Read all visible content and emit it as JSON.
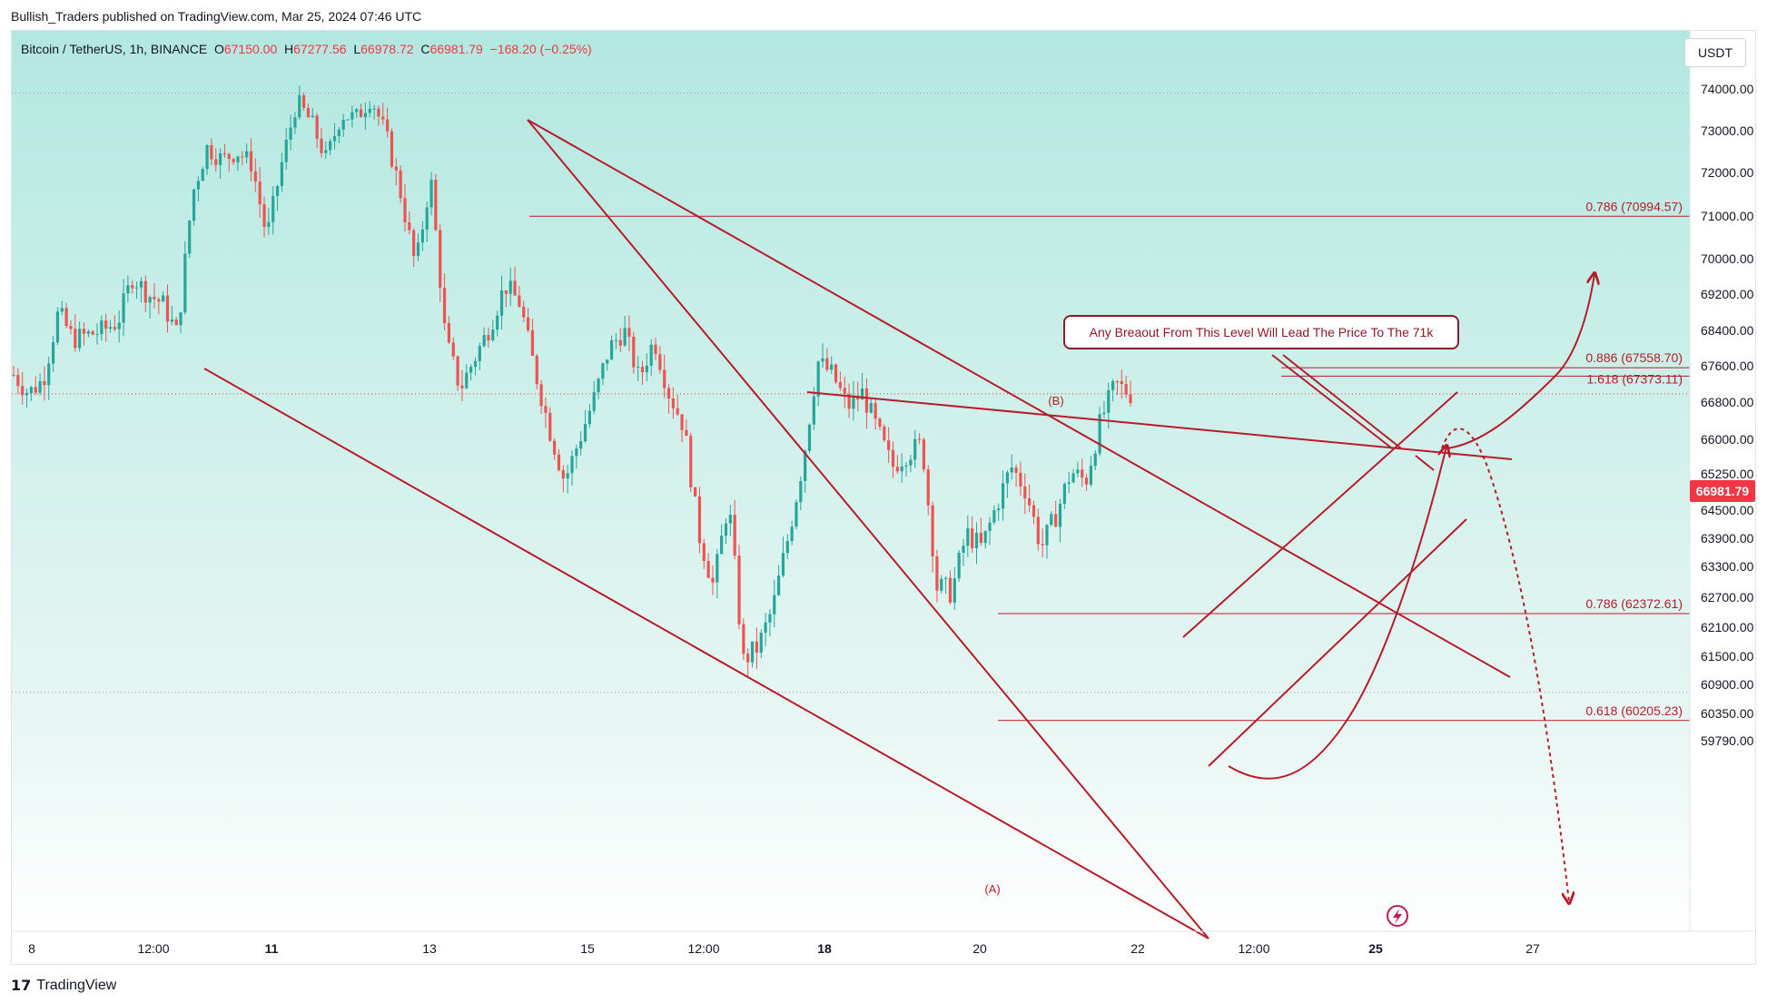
{
  "publisher_line": "Bullish_Traders published on TradingView.com, Mar 25, 2024 07:46 UTC",
  "footer": {
    "brand": "TradingView",
    "logo": "tradingview-logo-icon"
  },
  "header": {
    "symbol": "Bitcoin / TetherUS, 1h, BINANCE",
    "o_label": "O",
    "o_value": "67150.00",
    "h_label": "H",
    "h_value": "67277.56",
    "l_label": "L",
    "l_value": "66978.72",
    "c_label": "C",
    "c_value": "66981.79",
    "change": "−168.20 (−0.25%)"
  },
  "unit": "USDT",
  "last_price": "66981.79",
  "annotation": "Any Breaout From This Level Will Lead The Price To The 71k",
  "colors": {
    "up": "#26a69a",
    "down": "#ef5350",
    "drawing": "#b71c2c",
    "bg_top": "#b2e8e0",
    "bg_bottom": "#ffffff",
    "price_tag": "#f23645"
  },
  "chart_data": {
    "type": "candlestick",
    "y_axis": {
      "ticks": [
        "74000.00",
        "73000.00",
        "72000.00",
        "71000.00",
        "70000.00",
        "69200.00",
        "68400.00",
        "67600.00",
        "66800.00",
        "66000.00",
        "65250.00",
        "64500.00",
        "63900.00",
        "63300.00",
        "62700.00",
        "62100.00",
        "61500.00",
        "60900.00",
        "60350.00",
        "59790.00"
      ]
    },
    "x_axis": {
      "ticks": [
        {
          "label": "8",
          "bold": false
        },
        {
          "label": "12:00",
          "bold": false
        },
        {
          "label": "11",
          "bold": true
        },
        {
          "label": "13",
          "bold": false
        },
        {
          "label": "15",
          "bold": false
        },
        {
          "label": "12:00",
          "bold": false
        },
        {
          "label": "18",
          "bold": true
        },
        {
          "label": "20",
          "bold": false
        },
        {
          "label": "22",
          "bold": false
        },
        {
          "label": "12:00",
          "bold": false
        },
        {
          "label": "25",
          "bold": true
        },
        {
          "label": "27",
          "bold": false
        }
      ]
    },
    "fib_levels": [
      {
        "label": "0.786 (70994.57)",
        "price": 70994.57
      },
      {
        "label": "0.886 (67558.70)",
        "price": 67558.7
      },
      {
        "label": "1.618 (67373.11)",
        "price": 67373.11
      },
      {
        "label": "0.786 (62372.61)",
        "price": 62372.61
      },
      {
        "label": "0.618 (60205.23)",
        "price": 60205.23
      }
    ],
    "wave_labels": [
      {
        "label": "(B)",
        "price": 68600
      },
      {
        "label": "(A)",
        "price": 60400
      }
    ],
    "price_path": [
      [
        0,
        67400
      ],
      [
        0.02,
        67000
      ],
      [
        0.04,
        67300
      ],
      [
        0.06,
        68800
      ],
      [
        0.08,
        68200
      ],
      [
        0.1,
        68300
      ],
      [
        0.12,
        68400
      ],
      [
        0.14,
        68600
      ],
      [
        0.16,
        69600
      ],
      [
        0.18,
        69200
      ],
      [
        0.2,
        69000
      ],
      [
        0.22,
        68300
      ],
      [
        0.24,
        71500
      ],
      [
        0.26,
        72600
      ],
      [
        0.28,
        72300
      ],
      [
        0.3,
        72500
      ],
      [
        0.32,
        72200
      ],
      [
        0.34,
        70500
      ],
      [
        0.36,
        72200
      ],
      [
        0.38,
        73700
      ],
      [
        0.4,
        73200
      ],
      [
        0.42,
        72300
      ],
      [
        0.44,
        73400
      ],
      [
        0.46,
        73300
      ],
      [
        0.48,
        73800
      ],
      [
        0.5,
        72900
      ],
      [
        0.52,
        71500
      ],
      [
        0.54,
        69800
      ],
      [
        0.56,
        71900
      ],
      [
        0.58,
        68200
      ],
      [
        0.6,
        67100
      ],
      [
        0.62,
        67800
      ],
      [
        0.64,
        68500
      ],
      [
        0.66,
        69400
      ],
      [
        0.68,
        69000
      ],
      [
        0.7,
        67500
      ],
      [
        0.72,
        66200
      ],
      [
        0.74,
        65100
      ],
      [
        0.76,
        66000
      ],
      [
        0.78,
        66900
      ],
      [
        0.8,
        68000
      ],
      [
        0.82,
        68400
      ],
      [
        0.84,
        67300
      ],
      [
        0.86,
        68200
      ],
      [
        0.88,
        67000
      ],
      [
        0.9,
        66300
      ],
      [
        0.92,
        64000
      ],
      [
        0.94,
        62900
      ],
      [
        0.96,
        64700
      ],
      [
        0.98,
        61400
      ],
      [
        1.0,
        61700
      ],
      [
        1.02,
        62500
      ],
      [
        1.04,
        63900
      ],
      [
        1.06,
        65500
      ],
      [
        1.08,
        67700
      ],
      [
        1.1,
        67400
      ],
      [
        1.12,
        66700
      ],
      [
        1.14,
        67000
      ],
      [
        1.16,
        66200
      ],
      [
        1.18,
        65400
      ],
      [
        1.2,
        65700
      ],
      [
        1.22,
        65900
      ],
      [
        1.24,
        62900
      ],
      [
        1.26,
        62800
      ],
      [
        1.28,
        64000
      ],
      [
        1.3,
        63700
      ],
      [
        1.32,
        64600
      ],
      [
        1.34,
        65400
      ],
      [
        1.36,
        64900
      ],
      [
        1.38,
        63700
      ],
      [
        1.4,
        64400
      ],
      [
        1.42,
        65300
      ],
      [
        1.44,
        65100
      ],
      [
        1.46,
        66400
      ],
      [
        1.48,
        67200
      ],
      [
        1.5,
        66980
      ]
    ]
  }
}
